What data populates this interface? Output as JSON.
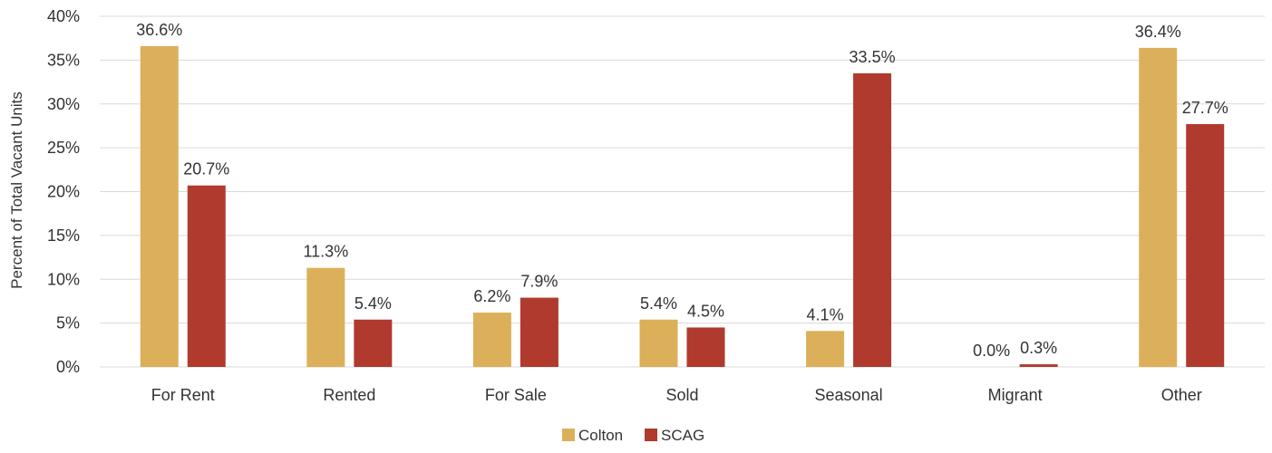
{
  "chart_data": {
    "type": "bar",
    "title": "",
    "xlabel": "",
    "ylabel": "Percent of Total Vacant Units",
    "ylim": [
      0,
      40
    ],
    "yticks": [
      0,
      5,
      10,
      15,
      20,
      25,
      30,
      35,
      40
    ],
    "ytick_suffix": "%",
    "grid": true,
    "legend_position": "bottom",
    "categories": [
      "For Rent",
      "Rented",
      "For Sale",
      "Sold",
      "Seasonal",
      "Migrant",
      "Other"
    ],
    "series": [
      {
        "name": "Colton",
        "color": "#dcb05a",
        "values": [
          36.6,
          11.3,
          6.2,
          5.4,
          4.1,
          0.0,
          36.4
        ],
        "labels": [
          "36.6%",
          "11.3%",
          "6.2%",
          "5.4%",
          "4.1%",
          "0.0%",
          "36.4%"
        ]
      },
      {
        "name": "SCAG",
        "color": "#b03a2e",
        "values": [
          20.7,
          5.4,
          7.9,
          4.5,
          33.5,
          0.3,
          27.7
        ],
        "labels": [
          "20.7%",
          "5.4%",
          "7.9%",
          "4.5%",
          "33.5%",
          "0.3%",
          "27.7%"
        ]
      }
    ]
  }
}
